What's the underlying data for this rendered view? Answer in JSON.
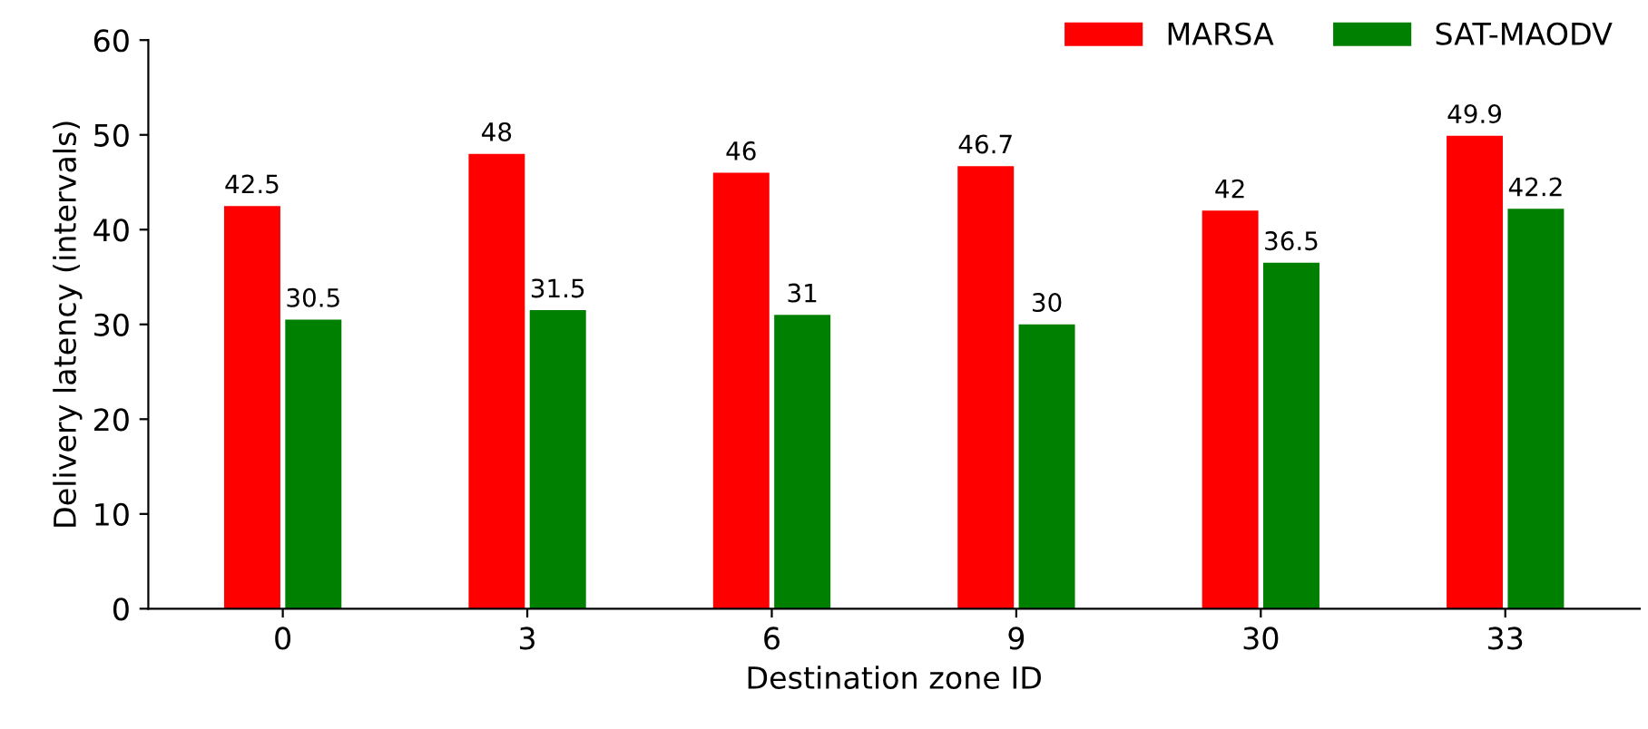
{
  "chart_data": {
    "type": "bar",
    "xlabel": "Destination zone ID",
    "ylabel": "Delivery latency (intervals)",
    "categories": [
      "0",
      "3",
      "6",
      "9",
      "30",
      "33"
    ],
    "series": [
      {
        "name": "MARSA",
        "color": "#ff0000",
        "values": [
          42.5,
          48,
          46,
          46.7,
          42,
          49.9
        ]
      },
      {
        "name": "SAT-MAODV",
        "color": "#008000",
        "values": [
          30.5,
          31.5,
          31,
          30,
          36.5,
          42.2
        ]
      }
    ],
    "ylim": [
      0,
      60
    ],
    "yticks": [
      0,
      10,
      20,
      30,
      40,
      50,
      60
    ],
    "grid": false,
    "legend": "top right",
    "data_labels": true
  }
}
